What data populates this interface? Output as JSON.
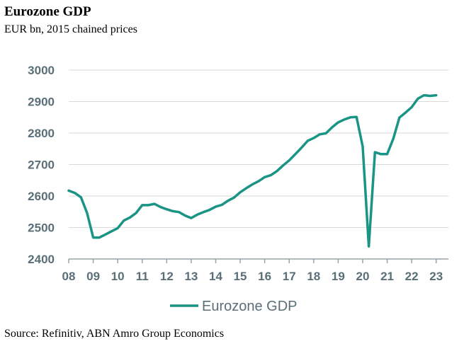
{
  "chart_data": {
    "type": "line",
    "title": "Eurozone GDP",
    "subtitle": "EUR bn, 2015 chained prices",
    "source": "Source: Refinitiv, ABN Amro Group Economics",
    "xlabel": "",
    "ylabel": "",
    "ylim": [
      2400,
      3000
    ],
    "yticks": [
      2400,
      2500,
      2600,
      2700,
      2800,
      2900,
      3000
    ],
    "xlim": [
      2008,
      2023.5
    ],
    "xticks": [
      {
        "v": 2008,
        "label": "08"
      },
      {
        "v": 2009,
        "label": "09"
      },
      {
        "v": 2010,
        "label": "10"
      },
      {
        "v": 2011,
        "label": "11"
      },
      {
        "v": 2012,
        "label": "12"
      },
      {
        "v": 2013,
        "label": "13"
      },
      {
        "v": 2014,
        "label": "14"
      },
      {
        "v": 2015,
        "label": "15"
      },
      {
        "v": 2016,
        "label": "16"
      },
      {
        "v": 2017,
        "label": "17"
      },
      {
        "v": 2018,
        "label": "18"
      },
      {
        "v": 2019,
        "label": "19"
      },
      {
        "v": 2020,
        "label": "20"
      },
      {
        "v": 2021,
        "label": "21"
      },
      {
        "v": 2022,
        "label": "22"
      },
      {
        "v": 2023,
        "label": "23"
      }
    ],
    "grid": true,
    "legend": "bottom-center",
    "series": [
      {
        "name": "Eurozone GDP",
        "color": "#1a9484",
        "x": [
          2008.0,
          2008.25,
          2008.5,
          2008.75,
          2009.0,
          2009.25,
          2009.5,
          2009.75,
          2010.0,
          2010.25,
          2010.5,
          2010.75,
          2011.0,
          2011.25,
          2011.5,
          2011.75,
          2012.0,
          2012.25,
          2012.5,
          2012.75,
          2013.0,
          2013.25,
          2013.5,
          2013.75,
          2014.0,
          2014.25,
          2014.5,
          2014.75,
          2015.0,
          2015.25,
          2015.5,
          2015.75,
          2016.0,
          2016.25,
          2016.5,
          2016.75,
          2017.0,
          2017.25,
          2017.5,
          2017.75,
          2018.0,
          2018.25,
          2018.5,
          2018.75,
          2019.0,
          2019.25,
          2019.5,
          2019.75,
          2020.0,
          2020.25,
          2020.5,
          2020.75,
          2021.0,
          2021.25,
          2021.5,
          2021.75,
          2022.0,
          2022.25,
          2022.5,
          2022.75,
          2023.0
        ],
        "values": [
          2617,
          2610,
          2596,
          2546,
          2468,
          2468,
          2478,
          2488,
          2498,
          2522,
          2532,
          2546,
          2571,
          2571,
          2575,
          2565,
          2558,
          2552,
          2549,
          2538,
          2530,
          2541,
          2549,
          2556,
          2566,
          2572,
          2585,
          2595,
          2612,
          2625,
          2637,
          2647,
          2660,
          2666,
          2679,
          2697,
          2713,
          2733,
          2753,
          2775,
          2784,
          2796,
          2799,
          2818,
          2834,
          2843,
          2850,
          2851,
          2757,
          2440,
          2739,
          2733,
          2733,
          2782,
          2849,
          2865,
          2882,
          2909,
          2920,
          2918,
          2920
        ]
      }
    ]
  }
}
